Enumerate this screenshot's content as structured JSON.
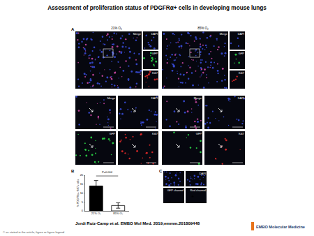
{
  "header": {
    "title": "Assessment of proliferation status of PDGFRα+ cells in developing mouse lungs"
  },
  "panels": {
    "A": {
      "label": "A",
      "conditions": [
        "21% O₂",
        "85% O₂"
      ],
      "overview_labels": {
        "merge": "Merge",
        "side": [
          "DAPI",
          "GFP",
          "Ki67"
        ]
      },
      "zoom_labels": [
        [
          "Merge",
          "DAPI"
        ],
        [
          "GFP",
          "Ki67"
        ]
      ]
    },
    "C": {
      "label": "C",
      "labels": [
        "DAPI",
        "GFP channel",
        "Red channel"
      ]
    }
  },
  "chart_data": {
    "label": "B",
    "type": "bar",
    "categories": [
      "21% O₂",
      "85% O₂"
    ],
    "values": [
      14,
      3
    ],
    "errors": [
      3,
      1.5
    ],
    "colors": [
      "#000000",
      "#ffffff"
    ],
    "y_label": "% PDGFRα+ Ki67+ cells",
    "annotations": [
      "P=0.004"
    ],
    "ylim": [
      0,
      20
    ],
    "yticks": [
      0,
      5,
      10,
      15,
      20
    ],
    "grid": false
  },
  "citation": "Jordi Ruiz-Camp et al. EMBO Mol Med. 2019;emmm.201809448",
  "journal": "EMBO Molecular Medicine",
  "copyright": "© as stated in the article, figure or figure legend"
}
